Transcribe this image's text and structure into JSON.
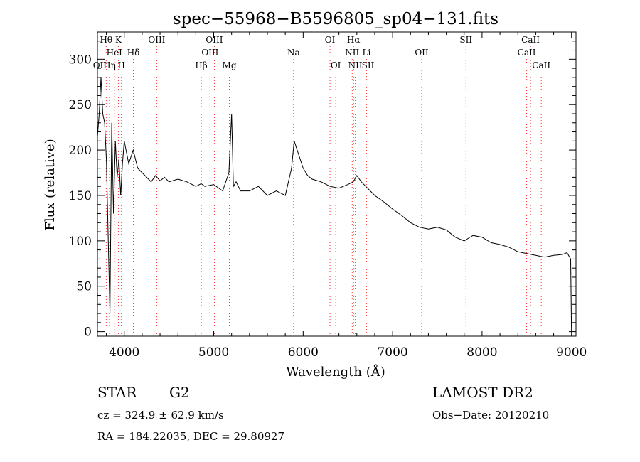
{
  "chart_data": {
    "type": "line",
    "title": "spec−55968−B5596805_sp04−131.fits",
    "xlabel": "Wavelength (Å)",
    "ylabel": "Flux (relative)",
    "xlim": [
      3700,
      9050
    ],
    "ylim": [
      -5,
      330
    ],
    "x_ticks": [
      4000,
      5000,
      6000,
      7000,
      8000,
      9000
    ],
    "y_ticks": [
      0,
      50,
      100,
      150,
      200,
      250,
      300
    ],
    "grid": false,
    "line_color": "#000000",
    "marker_color": "#ff3030",
    "series": [
      {
        "x": [
          3700,
          3720,
          3740,
          3760,
          3780,
          3800,
          3820,
          3840,
          3860,
          3880,
          3900,
          3920,
          3940,
          3960,
          3980,
          4000,
          4050,
          4100,
          4150,
          4200,
          4250,
          4300,
          4350,
          4400,
          4450,
          4500,
          4600,
          4700,
          4800,
          4860,
          4900,
          5000,
          5100,
          5170,
          5200,
          5220,
          5250,
          5300,
          5400,
          5500,
          5600,
          5700,
          5800,
          5870,
          5900,
          5950,
          6000,
          6050,
          6100,
          6200,
          6300,
          6400,
          6500,
          6560,
          6600,
          6650,
          6700,
          6750,
          6800,
          6900,
          7000,
          7100,
          7200,
          7300,
          7400,
          7500,
          7600,
          7700,
          7800,
          7850,
          7900,
          8000,
          8100,
          8200,
          8300,
          8400,
          8500,
          8600,
          8700,
          8800,
          8900,
          8950,
          8990,
          9000
        ],
        "y": [
          215,
          240,
          280,
          240,
          230,
          190,
          105,
          20,
          230,
          130,
          210,
          170,
          190,
          150,
          185,
          210,
          185,
          200,
          180,
          175,
          170,
          165,
          172,
          166,
          170,
          165,
          168,
          165,
          160,
          163,
          160,
          162,
          155,
          175,
          240,
          160,
          165,
          155,
          155,
          160,
          150,
          155,
          150,
          180,
          210,
          195,
          180,
          172,
          168,
          165,
          160,
          158,
          162,
          165,
          172,
          165,
          160,
          155,
          150,
          143,
          135,
          128,
          120,
          115,
          113,
          115,
          112,
          104,
          100,
          103,
          106,
          104,
          98,
          96,
          93,
          88,
          86,
          84,
          82,
          84,
          85,
          87,
          80,
          0
        ]
      }
    ],
    "line_markers": [
      {
        "label": "Hθ",
        "x": 3798,
        "row": 0
      },
      {
        "label": "K",
        "x": 3934,
        "row": 0
      },
      {
        "label": "OIII",
        "x": 4363,
        "row": 0
      },
      {
        "label": "OIII",
        "x": 5007,
        "row": 0
      },
      {
        "label": "OI",
        "x": 6300,
        "row": 0
      },
      {
        "label": "Hα",
        "x": 6563,
        "row": 0
      },
      {
        "label": "SII",
        "x": 7820,
        "row": 0
      },
      {
        "label": "CaII",
        "x": 8542,
        "row": 0
      },
      {
        "label": "HeI",
        "x": 3889,
        "row": 1
      },
      {
        "label": "Hδ",
        "x": 4102,
        "row": 1
      },
      {
        "label": "OIII",
        "x": 4959,
        "row": 1
      },
      {
        "label": "Na",
        "x": 5893,
        "row": 1
      },
      {
        "label": "NII",
        "x": 6548,
        "row": 1
      },
      {
        "label": "Li",
        "x": 6708,
        "row": 1
      },
      {
        "label": "OII",
        "x": 7325,
        "row": 1
      },
      {
        "label": "CaII",
        "x": 8498,
        "row": 1
      },
      {
        "label": "OII",
        "x": 3727,
        "row": 2
      },
      {
        "label": "Hη",
        "x": 3835,
        "row": 2
      },
      {
        "label": "H",
        "x": 3968,
        "row": 2
      },
      {
        "label": "Hβ",
        "x": 4861,
        "row": 2
      },
      {
        "label": "Mg",
        "x": 5175,
        "row": 2
      },
      {
        "label": "OI",
        "x": 6364,
        "row": 2
      },
      {
        "label": "NII",
        "x": 6583,
        "row": 2
      },
      {
        "label": "SII",
        "x": 6725,
        "row": 2
      },
      {
        "label": "CaII",
        "x": 8662,
        "row": 2
      }
    ]
  },
  "info": {
    "class_label": "STAR",
    "subclass": "G2",
    "survey": "LAMOST DR2",
    "redshift": "cz = 324.9 ± 62.9 km/s",
    "obs_date": "Obs−Date: 20120210",
    "coords": "RA = 184.22035, DEC =  29.80927"
  }
}
